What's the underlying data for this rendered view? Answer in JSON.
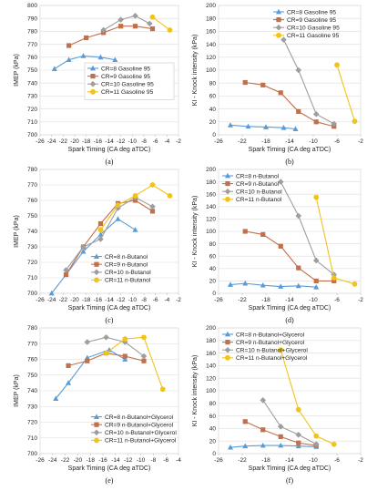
{
  "series_styles": [
    {
      "color": "#5b9bd5",
      "marker": "triangle"
    },
    {
      "color": "#c0704b",
      "marker": "square"
    },
    {
      "color": "#9e9e9e",
      "marker": "diamond"
    },
    {
      "color": "#f2c318",
      "marker": "circle"
    }
  ],
  "chart_data": [
    {
      "panel": "(a)",
      "type": "line",
      "xlabel": "Spark Timing (CA deg aTDC)",
      "ylabel": "IMEP (kPa)",
      "xlim": [
        -26,
        -2
      ],
      "xticks": [
        -26,
        -24,
        -22,
        -20,
        -18,
        -16,
        -14,
        -12,
        -10,
        -8,
        -6,
        -4,
        -2
      ],
      "ylim": [
        700,
        800
      ],
      "yticks": [
        700,
        710,
        720,
        730,
        740,
        750,
        760,
        770,
        780,
        790,
        800
      ],
      "legend": "center-right",
      "series": [
        {
          "name": "CR=8  Gasoline 95",
          "x": [
            -23.5,
            -21,
            -18.5,
            -15.5,
            -13
          ],
          "y": [
            751,
            758,
            761,
            760,
            758
          ]
        },
        {
          "name": "CR=9  Gasoline 95",
          "x": [
            -21,
            -18,
            -15,
            -12,
            -9.5,
            -6.5
          ],
          "y": [
            769,
            775,
            779,
            784,
            784,
            782
          ]
        },
        {
          "name": "CR=10  Gasoline 95",
          "x": [
            -15,
            -12,
            -9.5,
            -7
          ],
          "y": [
            781,
            789,
            792,
            786
          ]
        },
        {
          "name": "CR=11  Gasoline 95",
          "x": [
            -6.5,
            -3.5
          ],
          "y": [
            791,
            781
          ]
        }
      ]
    },
    {
      "panel": "(b)",
      "type": "line",
      "xlabel": "Spark Timing (CA deg aTDC)",
      "ylabel": "KI - Knock intensity (kPa)",
      "xlim": [
        -26,
        -2
      ],
      "xticks": [
        -26,
        -22,
        -18,
        -14,
        -10,
        -6,
        -2
      ],
      "ylim": [
        0,
        200
      ],
      "yticks": [
        0,
        20,
        40,
        60,
        80,
        100,
        120,
        140,
        160,
        180,
        200
      ],
      "legend": "top-right",
      "series": [
        {
          "name": "CR=8  Gasoline 95",
          "x": [
            -24,
            -21,
            -18,
            -15,
            -13
          ],
          "y": [
            15,
            13,
            12,
            11,
            9
          ]
        },
        {
          "name": "CR=9  Gasoline 95",
          "x": [
            -21.5,
            -18.5,
            -15.5,
            -12.5,
            -9.5,
            -6.5
          ],
          "y": [
            81,
            77,
            65,
            36,
            20,
            13
          ]
        },
        {
          "name": "CR=10  Gasoline 95",
          "x": [
            -15,
            -12.5,
            -9.5,
            -6.5
          ],
          "y": [
            147,
            100,
            32,
            17
          ]
        },
        {
          "name": "CR=11  Gasoline 95",
          "x": [
            -6,
            -3
          ],
          "y": [
            108,
            21
          ]
        }
      ]
    },
    {
      "panel": "(c)",
      "type": "line",
      "xlabel": "Spark Timing (CA deg aTDC)",
      "ylabel": "IMEP (kPa)",
      "xlim": [
        -26,
        -2
      ],
      "xticks": [
        -26,
        -24,
        -22,
        -20,
        -18,
        -16,
        -14,
        -12,
        -10,
        -8,
        -6,
        -4,
        -2
      ],
      "ylim": [
        700,
        780
      ],
      "yticks": [
        700,
        710,
        720,
        730,
        740,
        750,
        760,
        770,
        780
      ],
      "legend": "bottom-right",
      "series": [
        {
          "name": "CR=8  n-Butanol",
          "x": [
            -24,
            -21.5,
            -18.5,
            -15.5,
            -12.5,
            -9.5
          ],
          "y": [
            700,
            712,
            727,
            738,
            748,
            741
          ]
        },
        {
          "name": "CR=9  n-Butanol",
          "x": [
            -21.5,
            -18.5,
            -15.5,
            -12.5,
            -9.5,
            -6.5
          ],
          "y": [
            712,
            730,
            745,
            758,
            760,
            753
          ]
        },
        {
          "name": "CR=10  n-Butanol",
          "x": [
            -21.5,
            -18.5,
            -15.5,
            -12.5,
            -9.5,
            -6.5
          ],
          "y": [
            715,
            730,
            735,
            755,
            762,
            756
          ]
        },
        {
          "name": "CR=11  n-Butanol",
          "x": [
            -15.5,
            -12.5,
            -9.5,
            -6.5,
            -3.5
          ],
          "y": [
            741,
            757,
            763,
            770,
            763
          ]
        }
      ]
    },
    {
      "panel": "(d)",
      "type": "line",
      "xlabel": "Spark Timing (CA deg aTDC)",
      "ylabel": "KI - Knock intensity (kPa)",
      "xlim": [
        -26,
        -2
      ],
      "xticks": [
        -26,
        -22,
        -18,
        -14,
        -10,
        -6,
        -2
      ],
      "ylim": [
        0,
        200
      ],
      "yticks": [
        0,
        20,
        40,
        60,
        80,
        100,
        120,
        140,
        160,
        180,
        200
      ],
      "legend": "top-left",
      "series": [
        {
          "name": "CR=8  n-Butanol",
          "x": [
            -24,
            -21.5,
            -18.5,
            -15.5,
            -12.5,
            -9.5
          ],
          "y": [
            14,
            16,
            13,
            11,
            12,
            10
          ]
        },
        {
          "name": "CR=9  n-Butanol",
          "x": [
            -21.5,
            -18.5,
            -15.5,
            -12.5,
            -9.5,
            -6.5
          ],
          "y": [
            100,
            95,
            76,
            41,
            20,
            20
          ]
        },
        {
          "name": "CR=10  n-Butanol",
          "x": [
            -15.5,
            -12.5,
            -9.5,
            -6.5
          ],
          "y": [
            180,
            125,
            53,
            30
          ]
        },
        {
          "name": "CR=11  n-Butanol",
          "x": [
            -9.5,
            -6.5,
            -3
          ],
          "y": [
            155,
            25,
            15
          ]
        }
      ]
    },
    {
      "panel": "(e)",
      "type": "line",
      "xlabel": "Spark Timing (CA deg aTDC)",
      "ylabel": "IMEP (kPa)",
      "xlim": [
        -26,
        -4
      ],
      "xticks": [
        -26,
        -24,
        -22,
        -20,
        -18,
        -16,
        -14,
        -12,
        -10,
        -8,
        -6,
        -4
      ],
      "ylim": [
        700,
        780
      ],
      "yticks": [
        700,
        710,
        720,
        730,
        740,
        750,
        760,
        770,
        780
      ],
      "legend": "bottom-right",
      "series": [
        {
          "name": "CR=8  n-Butanol+Glycerol",
          "x": [
            -23.5,
            -21.5,
            -18.5,
            -15,
            -12.5
          ],
          "y": [
            735,
            745,
            761,
            766,
            760
          ]
        },
        {
          "name": "CR=9  n-Butanol+Glycerol",
          "x": [
            -21.5,
            -18.5,
            -15.5,
            -12.5,
            -9.5
          ],
          "y": [
            756,
            759,
            764,
            762,
            759
          ]
        },
        {
          "name": "CR=10 n-Butanol+Glycerol",
          "x": [
            -18.5,
            -15.5,
            -12.5,
            -9.5
          ],
          "y": [
            771,
            774,
            771,
            762
          ]
        },
        {
          "name": "CR=11 n-Butanol+Glycerol",
          "x": [
            -15.5,
            -12.5,
            -9.5,
            -6.5
          ],
          "y": [
            764,
            773,
            774,
            741
          ]
        }
      ]
    },
    {
      "panel": "(f)",
      "type": "line",
      "xlabel": "Spark Timing (CA deg aTDC)",
      "ylabel": "KI - Knock intensity (kPa)",
      "xlim": [
        -26,
        -2
      ],
      "xticks": [
        -26,
        -22,
        -18,
        -14,
        -10,
        -6,
        -2
      ],
      "ylim": [
        0,
        200
      ],
      "yticks": [
        0,
        20,
        40,
        60,
        80,
        100,
        120,
        140,
        160,
        180,
        200
      ],
      "legend": "top-left",
      "series": [
        {
          "name": "CR=8  n-Butanol+Glycerol",
          "x": [
            -24,
            -21.5,
            -18.5,
            -15.5,
            -12.5,
            -9.5
          ],
          "y": [
            10,
            12,
            13,
            13,
            12,
            11
          ]
        },
        {
          "name": "CR=9  n-Butanol+Glycerol",
          "x": [
            -21.5,
            -18.5,
            -15.5,
            -12.5,
            -9.5
          ],
          "y": [
            51,
            38,
            27,
            17,
            13
          ]
        },
        {
          "name": "CR=10 n-Butanol+Glycerol",
          "x": [
            -18.5,
            -15.5,
            -12.5,
            -9.5
          ],
          "y": [
            85,
            43,
            30,
            15
          ]
        },
        {
          "name": "CR=11 n-Butanol+Glycerol",
          "x": [
            -15.5,
            -12.5,
            -9.5,
            -6.5
          ],
          "y": [
            165,
            70,
            28,
            15
          ]
        }
      ]
    }
  ]
}
